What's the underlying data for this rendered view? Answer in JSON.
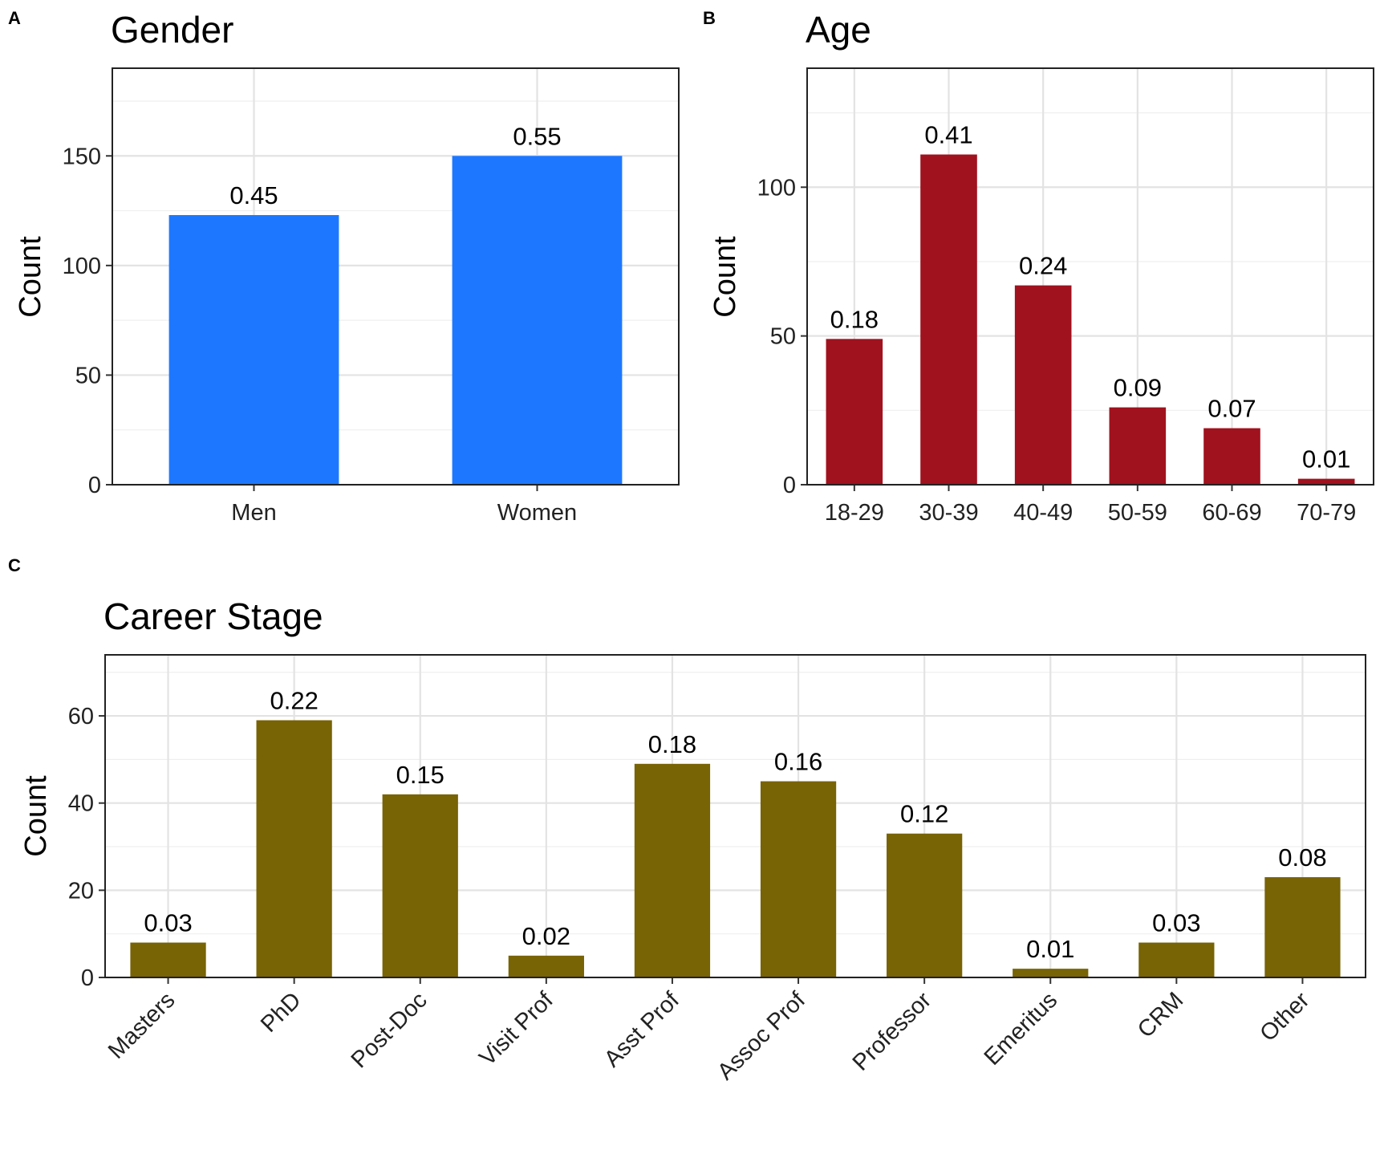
{
  "chart_data": [
    {
      "panel": "A",
      "type": "bar",
      "title": "Gender",
      "xlabel": "",
      "ylabel": "Count",
      "ylim": [
        0,
        190
      ],
      "yticks": [
        0,
        50,
        100,
        150
      ],
      "categories": [
        "Men",
        "Women"
      ],
      "values": [
        123,
        150
      ],
      "labels": [
        "0.45",
        "0.55"
      ],
      "color": "#1E78FF",
      "grid": true,
      "legend": "none"
    },
    {
      "panel": "B",
      "type": "bar",
      "title": "Age",
      "xlabel": "",
      "ylabel": "Count",
      "ylim": [
        0,
        140
      ],
      "yticks": [
        0,
        50,
        100
      ],
      "categories": [
        "18-29",
        "30-39",
        "40-49",
        "50-59",
        "60-69",
        "70-79"
      ],
      "values": [
        49,
        111,
        67,
        26,
        19,
        2
      ],
      "labels": [
        "0.18",
        "0.41",
        "0.24",
        "0.09",
        "0.07",
        "0.01"
      ],
      "color": "#A0121E",
      "grid": true,
      "legend": "none"
    },
    {
      "panel": "C",
      "type": "bar",
      "title": "Career Stage",
      "xlabel": "",
      "ylabel": "Count",
      "ylim": [
        0,
        74
      ],
      "yticks": [
        0,
        20,
        40,
        60
      ],
      "categories": [
        "Masters",
        "PhD",
        "Post-Doc",
        "Visit Prof",
        "Asst Prof",
        "Assoc Prof",
        "Professor",
        "Emeritus",
        "CRM",
        "Other"
      ],
      "values": [
        8,
        59,
        42,
        5,
        49,
        45,
        33,
        2,
        8,
        23
      ],
      "labels": [
        "0.03",
        "0.22",
        "0.15",
        "0.02",
        "0.18",
        "0.16",
        "0.12",
        "0.01",
        "0.03",
        "0.08"
      ],
      "color": "#786305",
      "grid": true,
      "legend": "none",
      "x_tick_rotation": "45 degrees"
    }
  ]
}
